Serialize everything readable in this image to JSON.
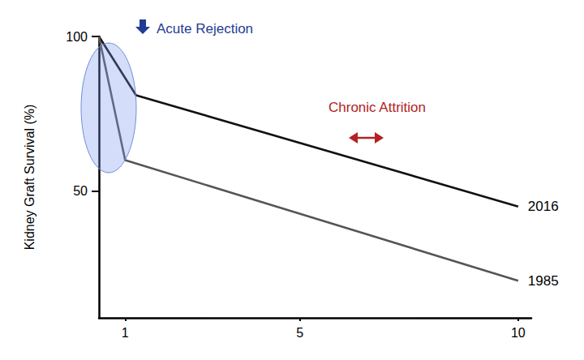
{
  "chart_data": {
    "type": "line",
    "y_label": "Kidney Graft Survival (%)",
    "annotations": [
      {
        "text": "Acute Rejection",
        "color": "#1f3c96"
      },
      {
        "text": "Chronic Attrition",
        "color": "#b22222"
      }
    ],
    "series": [
      {
        "name": "2016",
        "color": "#111111",
        "x": [
          0.4,
          1.25,
          10
        ],
        "values": [
          100,
          81,
          45
        ]
      },
      {
        "name": "1985",
        "color": "#555555",
        "x": [
          0.4,
          1,
          10
        ],
        "values": [
          100,
          60,
          21
        ]
      }
    ],
    "xlim": [
      0.4,
      10.3
    ],
    "xticks": [
      1,
      5,
      10
    ],
    "ylim": [
      9,
      100
    ],
    "yticks": [
      50,
      100
    ],
    "grid": false
  }
}
